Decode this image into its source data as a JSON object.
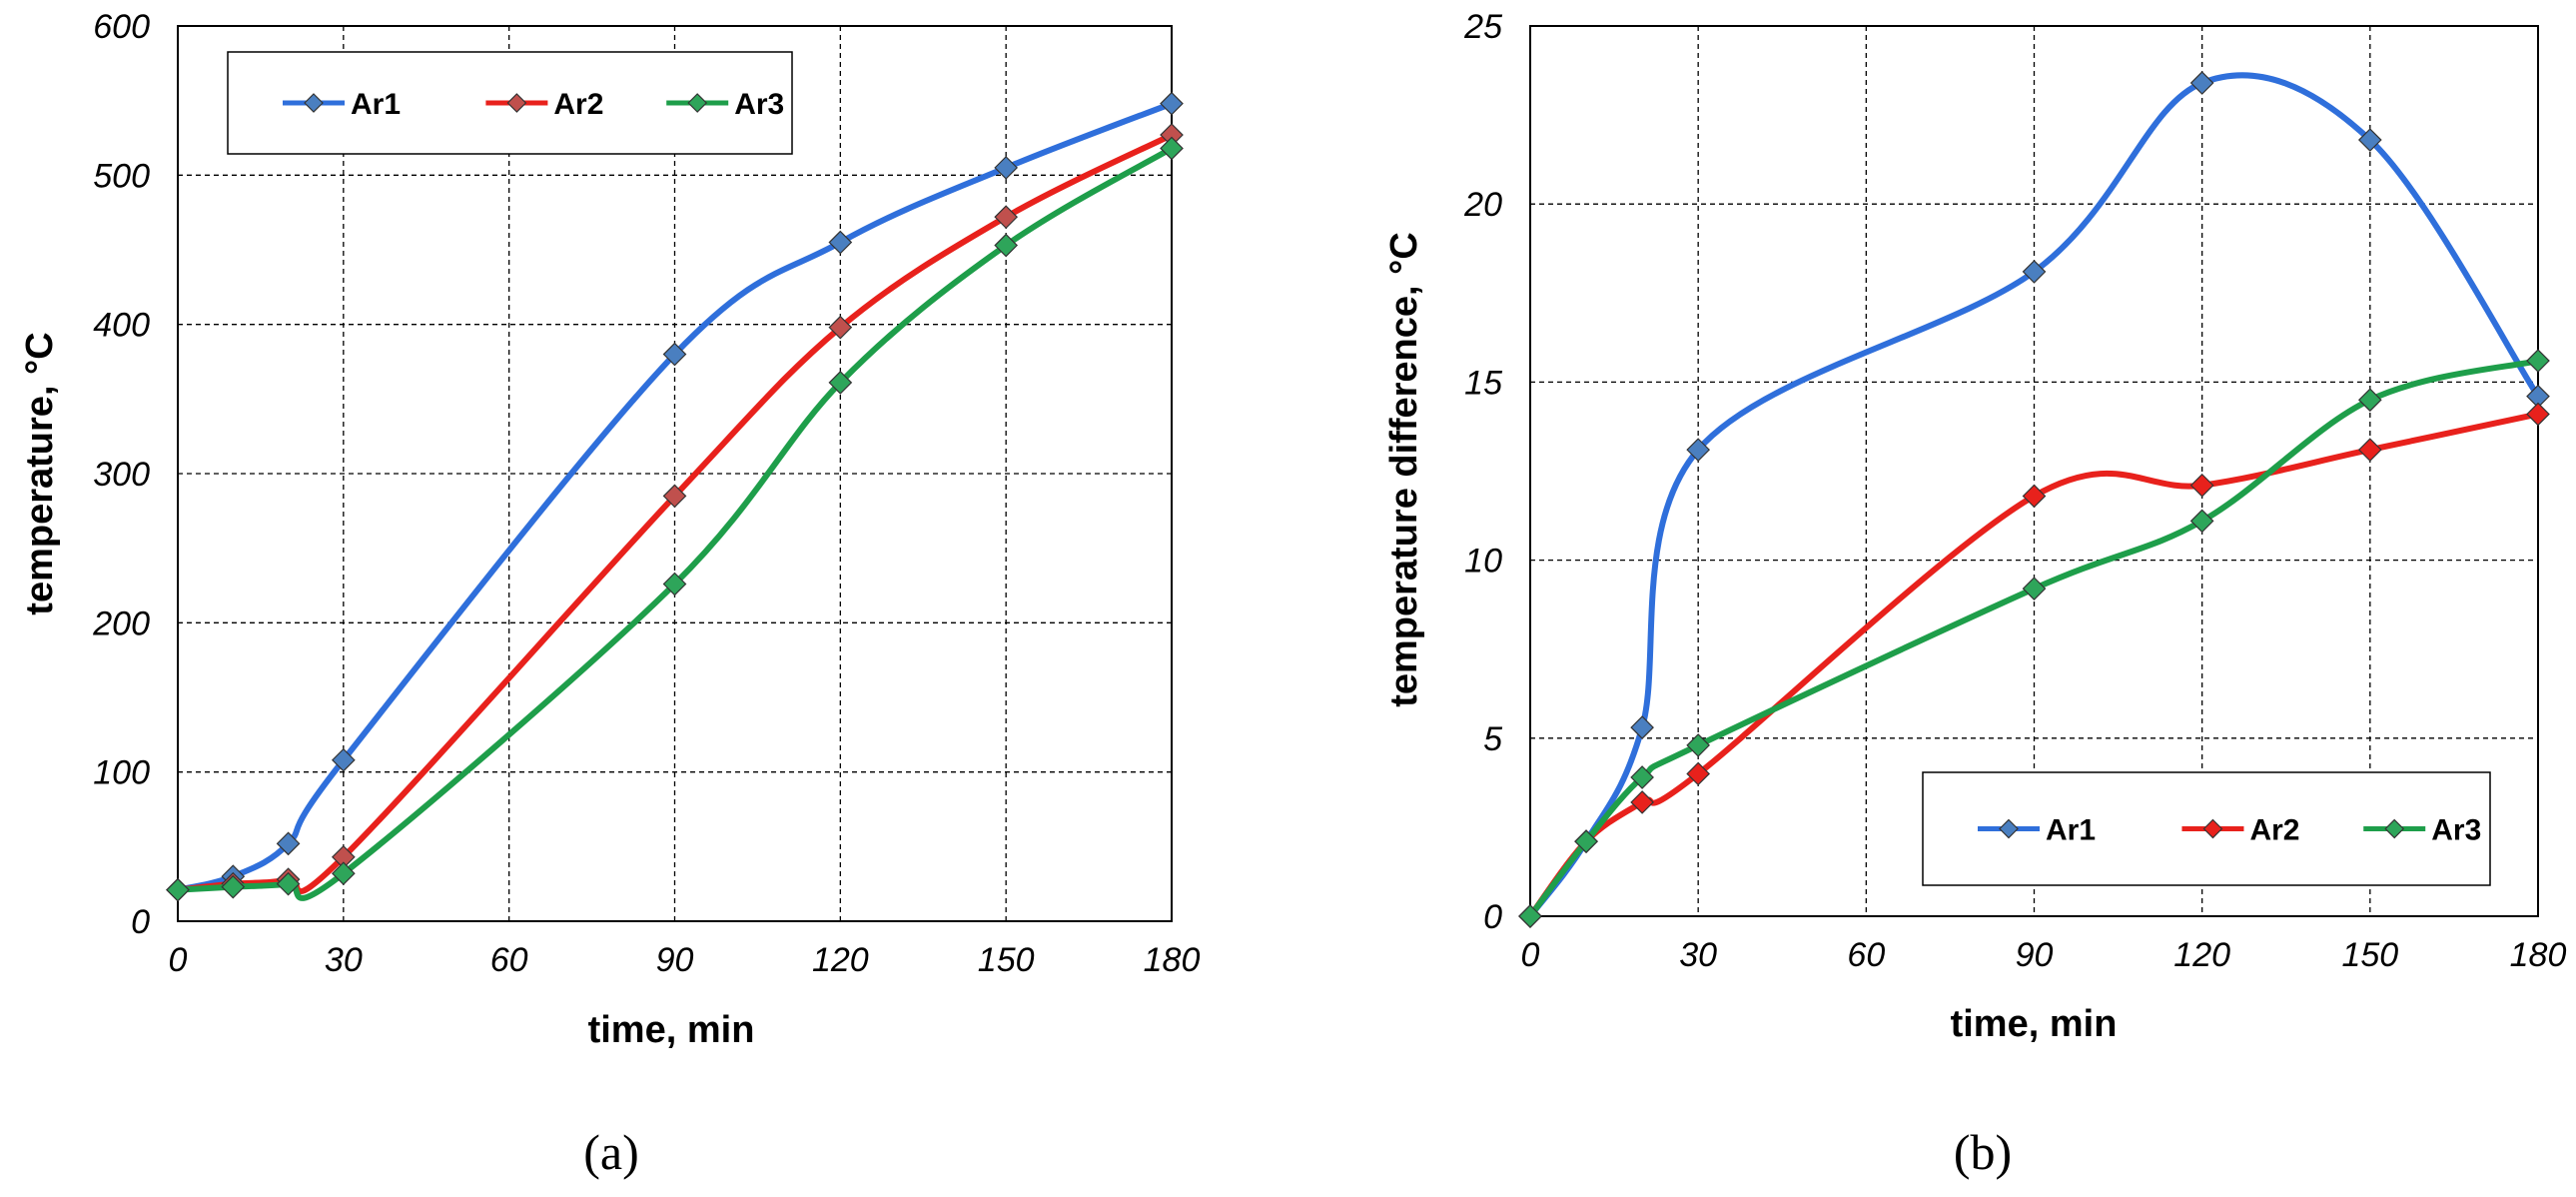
{
  "chart_data": [
    {
      "type": "line",
      "panel_label": "(a)",
      "xlabel": "time, min",
      "ylabel": "temperature, °C",
      "xlim": [
        0,
        180
      ],
      "ylim": [
        0,
        600
      ],
      "xticks": [
        0,
        30,
        60,
        90,
        120,
        150,
        180
      ],
      "yticks": [
        0,
        100,
        200,
        300,
        400,
        500,
        600
      ],
      "grid": true,
      "legend_position": "top-left",
      "series": [
        {
          "name": "Ar1",
          "color": "#2f6fdb",
          "marker_color": "#4a7fc0",
          "x": [
            0,
            10,
            20,
            30,
            90,
            120,
            150,
            180
          ],
          "values": [
            21,
            30,
            52,
            108,
            380,
            455,
            505,
            548
          ]
        },
        {
          "name": "Ar2",
          "color": "#e8211c",
          "marker_color": "#c0504d",
          "x": [
            0,
            10,
            20,
            30,
            90,
            120,
            150,
            180
          ],
          "values": [
            21,
            25,
            28,
            43,
            285,
            398,
            472,
            527
          ]
        },
        {
          "name": "Ar3",
          "color": "#1e9e4a",
          "marker_color": "#2ea55a",
          "x": [
            0,
            10,
            20,
            30,
            90,
            120,
            150,
            180
          ],
          "values": [
            21,
            23,
            25,
            32,
            226,
            361,
            453,
            518
          ]
        }
      ]
    },
    {
      "type": "line",
      "panel_label": "(b)",
      "xlabel": "time, min",
      "ylabel": "temperature difference, °C",
      "xlim": [
        0,
        180
      ],
      "ylim": [
        0,
        25
      ],
      "xticks": [
        0,
        30,
        60,
        90,
        120,
        150,
        180
      ],
      "yticks": [
        0,
        5,
        10,
        15,
        20,
        25
      ],
      "grid": true,
      "legend_position": "bottom-right",
      "series": [
        {
          "name": "Ar1",
          "color": "#2f6fdb",
          "marker_color": "#4a7fc0",
          "x": [
            0,
            10,
            20,
            30,
            90,
            120,
            150,
            180
          ],
          "values": [
            0,
            2.1,
            5.3,
            13.1,
            18.1,
            23.4,
            21.8,
            14.6
          ]
        },
        {
          "name": "Ar2",
          "color": "#e8211c",
          "marker_color": "#e8211c",
          "x": [
            0,
            10,
            20,
            30,
            90,
            120,
            150,
            180
          ],
          "values": [
            0,
            2.1,
            3.2,
            4.0,
            11.8,
            12.1,
            13.1,
            14.1
          ]
        },
        {
          "name": "Ar3",
          "color": "#1e9e4a",
          "marker_color": "#2ea55a",
          "x": [
            0,
            10,
            20,
            30,
            90,
            120,
            150,
            180
          ],
          "values": [
            0,
            2.1,
            3.9,
            4.8,
            9.2,
            11.1,
            14.5,
            15.6
          ]
        }
      ]
    }
  ]
}
